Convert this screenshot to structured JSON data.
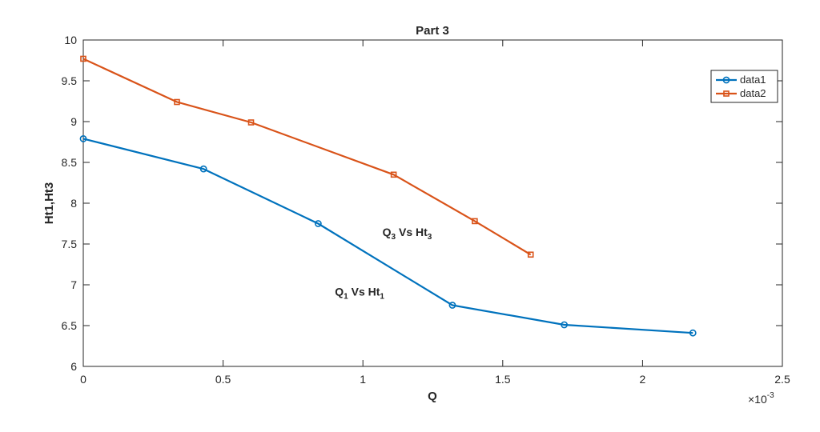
{
  "chart_data": {
    "type": "line",
    "title": "Part 3",
    "xlabel": "Q",
    "ylabel": "Ht1,Ht3",
    "x_multiplier_label": {
      "base": "×10",
      "exponent": "-3"
    },
    "xlim": [
      0,
      2.5
    ],
    "ylim": [
      6,
      10
    ],
    "xticks": [
      0,
      0.5,
      1,
      1.5,
      2,
      2.5
    ],
    "xtick_labels": [
      "0",
      "0.5",
      "1",
      "1.5",
      "2",
      "2.5"
    ],
    "yticks": [
      6,
      6.5,
      7,
      7.5,
      8,
      8.5,
      9,
      9.5,
      10
    ],
    "ytick_labels": [
      "6",
      "6.5",
      "7",
      "7.5",
      "8",
      "8.5",
      "9",
      "9.5",
      "10"
    ],
    "grid": false,
    "legend_position": "top-right",
    "series": [
      {
        "name": "data1",
        "color": "#0072BD",
        "marker": "circle",
        "x": [
          0,
          0.43,
          0.84,
          1.32,
          1.72,
          2.18
        ],
        "y": [
          8.79,
          8.42,
          7.75,
          6.75,
          6.51,
          6.41
        ]
      },
      {
        "name": "data2",
        "color": "#D95319",
        "marker": "square",
        "x": [
          0,
          0.335,
          0.6,
          1.11,
          1.4,
          1.6
        ],
        "y": [
          9.77,
          9.24,
          8.99,
          8.35,
          7.78,
          7.37
        ]
      }
    ],
    "annotations": [
      {
        "main": "Q",
        "sub": "3",
        "mid": " Vs Ht",
        "sub2": "3",
        "x": 1.07,
        "y": 7.6
      },
      {
        "main": "Q",
        "sub": "1",
        "mid": " Vs Ht",
        "sub2": "1",
        "x": 0.9,
        "y": 6.87
      }
    ]
  }
}
